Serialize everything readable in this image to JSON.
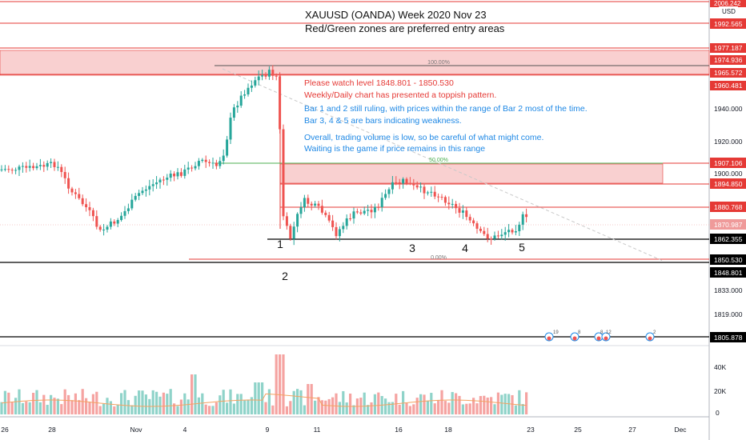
{
  "header": {
    "title_line1": "XAUUSD (OANDA) Week 2020 Nov 23",
    "title_line2": "Red/Green zones are preferred entry areas"
  },
  "currency": "USD",
  "annotation": {
    "red_line1": "Please watch level 1848.801 - 1850.530",
    "red_line2": "Weekly/Daily chart has presented a toppish pattern.",
    "blue_line1": "Bar 1 and 2 still ruling, with prices within the range of Bar 2 most of the time.",
    "blue_line2": "Bar 3, 4 & 5 are bars indicating weakness.",
    "blue_line3": "Overall, trading volume is low, so be careful of what might come.",
    "blue_line4": "Waiting is the game if price remains in this range"
  },
  "fib_labels": {
    "top": "100.00%",
    "mid": "50.00%",
    "bottom": "0.00%"
  },
  "bar_markers": [
    "1",
    "2",
    "3",
    "4",
    "5"
  ],
  "price_axis": {
    "ticks": [
      "1940.000",
      "1920.000",
      "1900.000",
      "1833.000",
      "1819.000"
    ],
    "tags": [
      {
        "label": "2006.242",
        "style": "red"
      },
      {
        "label": "1992.565",
        "style": "red"
      },
      {
        "label": "1977.187",
        "style": "red"
      },
      {
        "label": "1974.936",
        "style": "red"
      },
      {
        "label": "1965.572",
        "style": "red"
      },
      {
        "label": "1960.481",
        "style": "red"
      },
      {
        "label": "1907.106",
        "style": "red"
      },
      {
        "label": "1894.850",
        "style": "red"
      },
      {
        "label": "1880.768",
        "style": "red"
      },
      {
        "label": "1870.987",
        "style": "redlight"
      },
      {
        "label": "1862.355",
        "style": "black"
      },
      {
        "label": "1850.530",
        "style": "black"
      },
      {
        "label": "1848.801",
        "style": "black"
      },
      {
        "label": "1805.878",
        "style": "black"
      }
    ]
  },
  "volume_axis": {
    "ticks": [
      "40K",
      "20K",
      "0"
    ]
  },
  "time_axis": {
    "labels": [
      "26",
      "28",
      "Nov",
      "4",
      "9",
      "11",
      "16",
      "18",
      "23",
      "25",
      "27",
      "Dec"
    ]
  },
  "event_badges": [
    "19",
    "8",
    "8",
    "12",
    "2"
  ],
  "colors": {
    "bull": "#26a69a",
    "bear": "#ef5350",
    "zone": "#f9d0d0",
    "level_red": "#e53935",
    "level_black": "#000000",
    "fib_green": "#4caf50",
    "note_red": "#e53935",
    "note_blue": "#1e88e5"
  }
}
